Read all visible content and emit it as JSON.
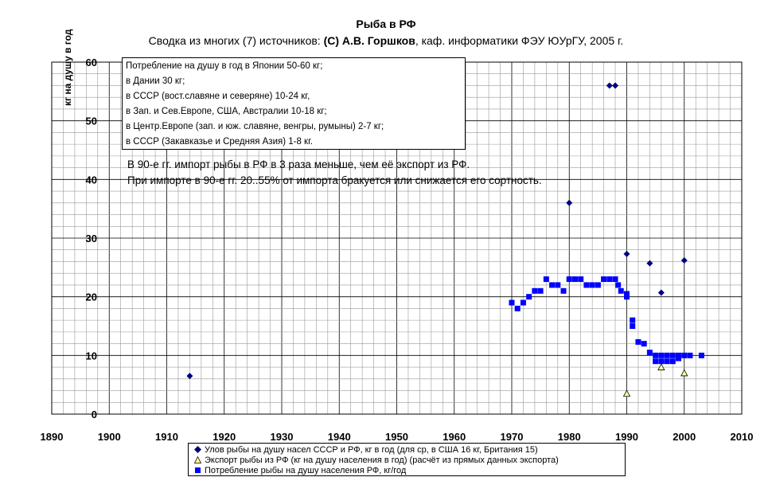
{
  "chart_data": {
    "type": "scatter",
    "title": "Рыба в РФ",
    "subtitle_parts": {
      "before": "Сводка из многих (7) источников: ",
      "bold": "(C) А.В. Горшков",
      "after": ", каф. информатики ФЭУ ЮУрГУ, 2005 г."
    },
    "ylabel": "кг на душу в год",
    "xlim": [
      1890,
      2010
    ],
    "ylim": [
      0,
      60
    ],
    "x_ticks": [
      "1890",
      "1900",
      "1910",
      "1920",
      "1930",
      "1940",
      "1950",
      "1960",
      "1970",
      "1980",
      "1990",
      "2000",
      "2010"
    ],
    "y_ticks": [
      "0",
      "10",
      "20",
      "30",
      "40",
      "50",
      "60"
    ],
    "grid": true,
    "legend_position": "bottom",
    "series": [
      {
        "name": "Улов рыбы на душу насел СССР и РФ, кг в год (для ср, в США 16 кг, Британия 15)",
        "marker": "diamond",
        "color": "#000080",
        "points": [
          [
            1914,
            6.5
          ],
          [
            1980,
            36
          ],
          [
            1987,
            56
          ],
          [
            1988,
            56
          ],
          [
            1990,
            27.3
          ],
          [
            1994,
            25.7
          ],
          [
            1996,
            20.7
          ],
          [
            2000,
            26.2
          ]
        ]
      },
      {
        "name": "Экспорт рыбы из РФ (кг на душу населения в год) (расчёт из прямых данных экспорта)",
        "marker": "triangle",
        "color": "#ffff99",
        "points": [
          [
            1990,
            3.5
          ],
          [
            1996,
            8
          ],
          [
            2000,
            7
          ]
        ]
      },
      {
        "name": "Потребление рыбы на душу населения РФ, кг/год",
        "marker": "square",
        "color": "#0000ff",
        "points": [
          [
            1970,
            19
          ],
          [
            1971,
            18
          ],
          [
            1972,
            19
          ],
          [
            1973,
            20
          ],
          [
            1974,
            21
          ],
          [
            1975,
            21
          ],
          [
            1976,
            23
          ],
          [
            1977,
            22
          ],
          [
            1978,
            22
          ],
          [
            1979,
            21
          ],
          [
            1980,
            23
          ],
          [
            1981,
            23
          ],
          [
            1982,
            23
          ],
          [
            1983,
            22
          ],
          [
            1984,
            22
          ],
          [
            1985,
            22
          ],
          [
            1986,
            23
          ],
          [
            1987,
            23
          ],
          [
            1988,
            23
          ],
          [
            1988.5,
            22
          ],
          [
            1989,
            21
          ],
          [
            1990,
            20.5
          ],
          [
            1990,
            20
          ],
          [
            1991,
            15
          ],
          [
            1991,
            16
          ],
          [
            1992,
            12.3
          ],
          [
            1993,
            12
          ],
          [
            1994,
            10.5
          ],
          [
            1995,
            10
          ],
          [
            1995,
            9
          ],
          [
            1996,
            10
          ],
          [
            1996,
            9
          ],
          [
            1997,
            10
          ],
          [
            1997,
            9
          ],
          [
            1998,
            10
          ],
          [
            1998,
            9
          ],
          [
            1999,
            10
          ],
          [
            1999,
            9.5
          ],
          [
            2000,
            10
          ],
          [
            2001,
            10
          ],
          [
            2003,
            10
          ]
        ]
      }
    ]
  },
  "infobox": {
    "lines": [
      "Потребление на душу в год в Японии 50-60 кг;",
      "в Дании 30 кг;",
      "в СССР (вост.славяне и северяне) 10-24 кг,",
      "в Зап. и Сев.Европе, США, Австралии 10-18 кг;",
      "в Центр.Европе (зап. и юж. славяне, венгры, румыны) 2-7 кг;",
      "в СССР (Закавказье и Средняя Азия) 1-8 кг."
    ]
  },
  "notes": {
    "line1": "В 90-е гг. импорт рыбы в РФ в 3 раза меньше, чем её экспорт из РФ.",
    "line2": "При импорте в 90-е гг. 20..55% от импорта бракуется или снижается его сортность."
  }
}
